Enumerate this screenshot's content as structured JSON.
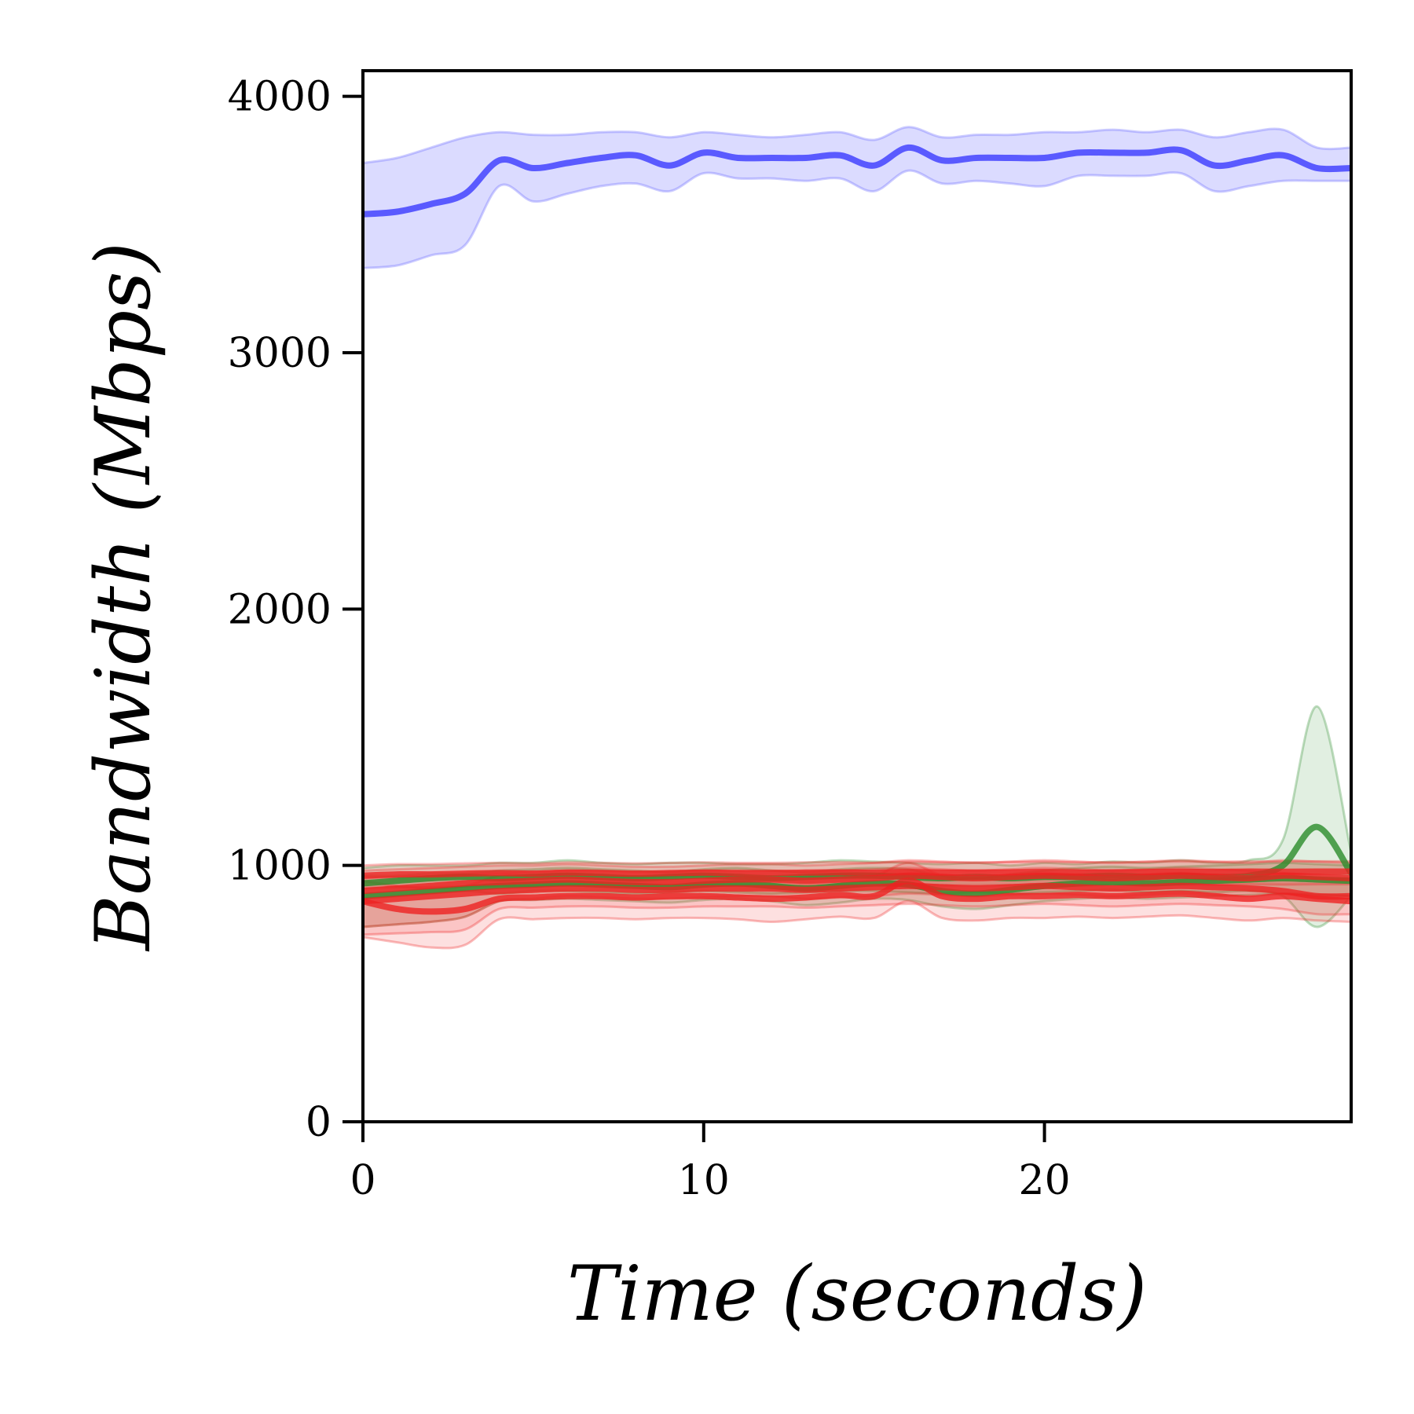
{
  "chart_data": {
    "type": "line",
    "xlabel": "Time (seconds)",
    "ylabel": "Bandwidth (Mbps)",
    "xlim": [
      0,
      29
    ],
    "ylim": [
      0,
      4100
    ],
    "xticks": [
      0,
      10,
      20
    ],
    "yticks": [
      0,
      1000,
      2000,
      3000,
      4000
    ],
    "grid": false,
    "legend": "none",
    "x": [
      0,
      1,
      2,
      3,
      4,
      5,
      6,
      7,
      8,
      9,
      10,
      11,
      12,
      13,
      14,
      15,
      16,
      17,
      18,
      19,
      20,
      21,
      22,
      23,
      24,
      25,
      26,
      27,
      28,
      29
    ],
    "colors": {
      "blue": "#5a5aff",
      "green": "#2a8c2a",
      "red": "#ee2222"
    },
    "series": [
      {
        "color": "blue",
        "values": [
          3540,
          3550,
          3580,
          3620,
          3750,
          3720,
          3740,
          3760,
          3770,
          3730,
          3780,
          3760,
          3760,
          3760,
          3770,
          3730,
          3800,
          3750,
          3760,
          3760,
          3760,
          3780,
          3780,
          3780,
          3790,
          3730,
          3750,
          3770,
          3720,
          3720
        ],
        "upper": [
          3740,
          3760,
          3800,
          3840,
          3860,
          3850,
          3850,
          3860,
          3860,
          3840,
          3860,
          3850,
          3840,
          3850,
          3860,
          3830,
          3880,
          3840,
          3850,
          3850,
          3860,
          3860,
          3870,
          3860,
          3870,
          3840,
          3860,
          3870,
          3800,
          3800
        ],
        "lower": [
          3330,
          3340,
          3380,
          3420,
          3650,
          3590,
          3620,
          3650,
          3660,
          3630,
          3700,
          3680,
          3680,
          3670,
          3680,
          3630,
          3710,
          3660,
          3670,
          3660,
          3650,
          3690,
          3690,
          3690,
          3700,
          3630,
          3650,
          3670,
          3670,
          3670
        ]
      },
      {
        "color": "green",
        "values": [
          930,
          940,
          950,
          955,
          950,
          955,
          960,
          955,
          950,
          955,
          960,
          955,
          950,
          955,
          960,
          960,
          955,
          950,
          955,
          950,
          955,
          955,
          960,
          955,
          960,
          955,
          960,
          1000,
          1150,
          970
        ],
        "upper": [
          990,
          1000,
          1000,
          1000,
          1010,
          1010,
          1020,
          1010,
          1005,
          1010,
          1010,
          1005,
          1005,
          1010,
          1020,
          1015,
          1010,
          1005,
          1010,
          1000,
          1010,
          1005,
          1015,
          1010,
          1020,
          1010,
          1020,
          1100,
          1620,
          1050
        ],
        "lower": [
          870,
          880,
          890,
          900,
          890,
          900,
          900,
          895,
          890,
          895,
          900,
          895,
          890,
          895,
          900,
          900,
          895,
          890,
          895,
          890,
          895,
          900,
          905,
          895,
          900,
          895,
          900,
          880,
          760,
          880
        ]
      },
      {
        "color": "green",
        "values": [
          880,
          890,
          900,
          910,
          920,
          925,
          930,
          925,
          920,
          915,
          925,
          930,
          920,
          910,
          920,
          930,
          925,
          900,
          890,
          905,
          920,
          930,
          935,
          930,
          935,
          940,
          945,
          950,
          945,
          940
        ],
        "upper": [
          960,
          960,
          970,
          970,
          980,
          985,
          990,
          985,
          980,
          975,
          985,
          990,
          980,
          975,
          985,
          990,
          985,
          960,
          950,
          965,
          980,
          990,
          995,
          990,
          995,
          1000,
          1005,
          1010,
          1005,
          1000
        ],
        "lower": [
          760,
          770,
          780,
          800,
          860,
          865,
          870,
          865,
          860,
          855,
          865,
          870,
          860,
          845,
          855,
          870,
          865,
          840,
          830,
          845,
          860,
          870,
          875,
          870,
          875,
          880,
          885,
          890,
          885,
          880
        ]
      },
      {
        "color": "red",
        "values": [
          960,
          965,
          965,
          968,
          970,
          968,
          972,
          970,
          968,
          970,
          972,
          970,
          970,
          972,
          973,
          971,
          974,
          972,
          972,
          973,
          974,
          972,
          973,
          974,
          975,
          974,
          976,
          975,
          976,
          976
        ],
        "upper": [
          1000,
          1005,
          1005,
          1008,
          1010,
          1008,
          1012,
          1010,
          1008,
          1010,
          1012,
          1010,
          1010,
          1012,
          1013,
          1011,
          1014,
          1012,
          1012,
          1013,
          1014,
          1012,
          1013,
          1014,
          1015,
          1014,
          1016,
          1015,
          1016,
          1016
        ],
        "lower": [
          910,
          915,
          915,
          918,
          920,
          918,
          922,
          920,
          918,
          920,
          922,
          920,
          920,
          922,
          923,
          921,
          924,
          922,
          922,
          923,
          924,
          922,
          923,
          924,
          925,
          924,
          926,
          925,
          926,
          926
        ]
      },
      {
        "color": "red",
        "values": [
          900,
          910,
          920,
          930,
          935,
          940,
          945,
          940,
          935,
          935,
          940,
          945,
          945,
          940,
          945,
          950,
          960,
          955,
          950,
          955,
          960,
          955,
          950,
          955,
          960,
          955,
          950,
          960,
          955,
          950
        ],
        "upper": [
          980,
          985,
          990,
          995,
          1000,
          1000,
          1005,
          1000,
          995,
          995,
          1000,
          1005,
          1005,
          1000,
          1005,
          1010,
          1020,
          1015,
          1010,
          1015,
          1020,
          1015,
          1010,
          1015,
          1020,
          1015,
          1010,
          1020,
          1015,
          1010
        ],
        "lower": [
          760,
          770,
          780,
          800,
          860,
          870,
          880,
          875,
          870,
          870,
          875,
          880,
          880,
          870,
          875,
          880,
          890,
          885,
          880,
          885,
          890,
          885,
          880,
          885,
          890,
          885,
          880,
          890,
          885,
          880
        ]
      },
      {
        "color": "red",
        "values": [
          860,
          830,
          820,
          830,
          870,
          875,
          880,
          880,
          875,
          880,
          880,
          875,
          870,
          875,
          885,
          880,
          940,
          880,
          870,
          880,
          880,
          885,
          880,
          885,
          890,
          880,
          870,
          880,
          870,
          860
        ],
        "upper": [
          940,
          920,
          910,
          920,
          960,
          960,
          965,
          960,
          955,
          960,
          960,
          955,
          950,
          955,
          965,
          960,
          1010,
          960,
          950,
          960,
          960,
          965,
          960,
          965,
          970,
          960,
          950,
          960,
          950,
          940
        ],
        "lower": [
          720,
          700,
          680,
          690,
          790,
          790,
          795,
          795,
          790,
          795,
          795,
          790,
          780,
          790,
          800,
          795,
          860,
          795,
          785,
          795,
          795,
          800,
          795,
          800,
          805,
          795,
          785,
          795,
          785,
          780
        ]
      },
      {
        "color": "red",
        "values": [
          860,
          870,
          880,
          890,
          900,
          905,
          910,
          910,
          905,
          905,
          910,
          910,
          910,
          905,
          910,
          915,
          920,
          915,
          910,
          915,
          920,
          915,
          910,
          915,
          920,
          915,
          910,
          900,
          880,
          880
        ],
        "upper": [
          950,
          955,
          960,
          965,
          970,
          975,
          980,
          980,
          975,
          975,
          980,
          980,
          980,
          975,
          980,
          985,
          990,
          985,
          980,
          985,
          990,
          985,
          980,
          985,
          990,
          985,
          980,
          970,
          950,
          950
        ],
        "lower": [
          730,
          735,
          740,
          750,
          830,
          835,
          840,
          840,
          835,
          835,
          840,
          840,
          840,
          835,
          840,
          845,
          850,
          845,
          840,
          845,
          850,
          845,
          840,
          845,
          850,
          845,
          840,
          830,
          810,
          810
        ]
      }
    ]
  }
}
